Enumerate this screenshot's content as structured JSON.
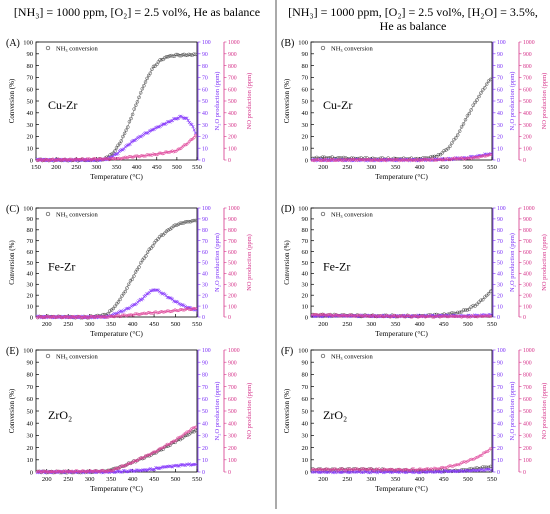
{
  "headers": {
    "left": "[NH₃] = 1000 ppm, [O₂] = 2.5 vol%, He as balance",
    "right_line1": "[NH₃] = 1000 ppm, [O₂] = 2.5 vol%, [H₂O] = 3.5%,",
    "right_line2": "He as balance"
  },
  "axis_text": {
    "xlabel": "Temperature (°C)",
    "ylabel_left": "Conversion (%)",
    "ylabel_n2o": "N₂O production (ppm)",
    "ylabel_no": "NO production (ppm)",
    "legend": "NH₃ conversion"
  },
  "colors": {
    "nh3": "#4a4a4a",
    "n2o": "#8a3ffc",
    "no": "#e0469b",
    "axis": "#000000",
    "n2o_axis": "#7b2ff7",
    "no_axis": "#d6338a"
  },
  "chart_data": [
    {
      "id": "A",
      "panel_label": "(A)",
      "catalyst": "Cu-Zr",
      "type": "scatter",
      "xlim": [
        150,
        550
      ],
      "xticks": [
        150,
        200,
        250,
        300,
        350,
        400,
        450,
        500,
        550
      ],
      "ylim": [
        0,
        100
      ],
      "n2o_lim": [
        0,
        100
      ],
      "no_lim": [
        0,
        1000
      ],
      "series": [
        {
          "name": "NH₃ conversion",
          "axis": "left",
          "x": [
            150,
            200,
            300,
            320,
            340,
            360,
            380,
            400,
            420,
            440,
            460,
            480,
            500,
            520,
            550
          ],
          "y": [
            0,
            0,
            0,
            1,
            5,
            15,
            30,
            48,
            65,
            78,
            85,
            88,
            89,
            89,
            89
          ]
        },
        {
          "axis": "n2o",
          "x": [
            150,
            300,
            330,
            350,
            380,
            400,
            430,
            460,
            490,
            510,
            525,
            540,
            550
          ],
          "y": [
            0,
            0,
            1,
            5,
            13,
            18,
            24,
            29,
            34,
            37,
            35,
            28,
            20
          ]
        },
        {
          "axis": "no",
          "x": [
            150,
            350,
            400,
            450,
            500,
            530,
            550
          ],
          "y": [
            0,
            10,
            30,
            50,
            80,
            150,
            220
          ]
        }
      ]
    },
    {
      "id": "B",
      "panel_label": "(B)",
      "catalyst": "Cu-Zr",
      "type": "scatter",
      "xlim": [
        175,
        550
      ],
      "xticks": [
        200,
        250,
        300,
        350,
        400,
        450,
        500,
        550
      ],
      "ylim": [
        0,
        100
      ],
      "n2o_lim": [
        0,
        100
      ],
      "no_lim": [
        0,
        1000
      ],
      "series": [
        {
          "name": "NH₃ conversion",
          "axis": "left",
          "x": [
            175,
            200,
            300,
            400,
            420,
            440,
            460,
            480,
            500,
            520,
            540,
            550
          ],
          "y": [
            2,
            2,
            1,
            1,
            2,
            4,
            10,
            22,
            38,
            52,
            65,
            70
          ]
        },
        {
          "axis": "n2o",
          "x": [
            175,
            400,
            450,
            500,
            530,
            550
          ],
          "y": [
            0,
            0,
            0.5,
            2,
            4,
            6
          ]
        },
        {
          "axis": "no",
          "x": [
            175,
            400,
            450,
            500,
            530,
            550
          ],
          "y": [
            0,
            0,
            5,
            15,
            30,
            45
          ]
        }
      ]
    },
    {
      "id": "C",
      "panel_label": "(C)",
      "catalyst": "Fe-Zr",
      "type": "scatter",
      "xlim": [
        175,
        550
      ],
      "xticks": [
        200,
        250,
        300,
        350,
        400,
        450,
        500,
        550
      ],
      "ylim": [
        0,
        100
      ],
      "n2o_lim": [
        0,
        100
      ],
      "no_lim": [
        0,
        1000
      ],
      "series": [
        {
          "name": "NH₃ conversion",
          "axis": "left",
          "x": [
            175,
            300,
            340,
            360,
            380,
            400,
            420,
            440,
            460,
            480,
            500,
            520,
            540,
            550
          ],
          "y": [
            0,
            0,
            2,
            10,
            22,
            36,
            50,
            62,
            72,
            79,
            84,
            87,
            88,
            89
          ]
        },
        {
          "axis": "n2o",
          "x": [
            175,
            340,
            360,
            380,
            400,
            420,
            440,
            450,
            460,
            480,
            500,
            520,
            550
          ],
          "y": [
            0,
            0,
            3,
            6,
            10,
            16,
            23,
            25,
            24,
            19,
            14,
            10,
            6
          ]
        },
        {
          "axis": "no",
          "x": [
            175,
            340,
            400,
            450,
            500,
            550
          ],
          "y": [
            0,
            0,
            20,
            40,
            60,
            80
          ]
        }
      ]
    },
    {
      "id": "D",
      "panel_label": "(D)",
      "catalyst": "Fe-Zr",
      "type": "scatter",
      "xlim": [
        175,
        550
      ],
      "xticks": [
        200,
        250,
        300,
        350,
        400,
        450,
        500,
        550
      ],
      "ylim": [
        0,
        100
      ],
      "n2o_lim": [
        0,
        100
      ],
      "no_lim": [
        0,
        1000
      ],
      "series": [
        {
          "name": "NH₃ conversion",
          "axis": "left",
          "x": [
            175,
            300,
            400,
            450,
            480,
            500,
            520,
            540,
            550
          ],
          "y": [
            2,
            1,
            1,
            2,
            4,
            7,
            12,
            20,
            26
          ]
        },
        {
          "axis": "n2o",
          "x": [
            175,
            300,
            400,
            500,
            550
          ],
          "y": [
            1,
            1,
            1,
            1,
            2
          ]
        },
        {
          "axis": "no",
          "x": [
            175,
            300,
            400,
            500,
            550
          ],
          "y": [
            20,
            10,
            5,
            5,
            10
          ]
        }
      ]
    },
    {
      "id": "E",
      "panel_label": "(E)",
      "catalyst": "ZrO₂",
      "type": "scatter",
      "xlim": [
        175,
        550
      ],
      "xticks": [
        200,
        250,
        300,
        350,
        400,
        450,
        500,
        550
      ],
      "ylim": [
        0,
        100
      ],
      "n2o_lim": [
        0,
        100
      ],
      "no_lim": [
        0,
        1000
      ],
      "series": [
        {
          "name": "NH₃ conversion",
          "axis": "left",
          "x": [
            175,
            300,
            340,
            360,
            380,
            400,
            420,
            440,
            460,
            480,
            500,
            520,
            540,
            550
          ],
          "y": [
            0,
            0,
            1,
            3,
            5,
            8,
            11,
            14,
            17,
            21,
            25,
            29,
            33,
            35
          ]
        },
        {
          "axis": "n2o",
          "x": [
            175,
            350,
            400,
            440,
            470,
            500,
            520,
            550
          ],
          "y": [
            0,
            0,
            1,
            2,
            4,
            5,
            6,
            6
          ]
        },
        {
          "axis": "no",
          "x": [
            175,
            350,
            400,
            450,
            500,
            550
          ],
          "y": [
            0,
            10,
            80,
            160,
            260,
            380
          ]
        }
      ]
    },
    {
      "id": "F",
      "panel_label": "(F)",
      "catalyst": "ZrO₂",
      "type": "scatter",
      "xlim": [
        175,
        550
      ],
      "xticks": [
        200,
        250,
        300,
        350,
        400,
        450,
        500,
        550
      ],
      "ylim": [
        0,
        100
      ],
      "n2o_lim": [
        0,
        100
      ],
      "no_lim": [
        0,
        1000
      ],
      "series": [
        {
          "name": "NH₃ conversion",
          "axis": "left",
          "x": [
            175,
            300,
            400,
            450,
            480,
            500,
            520,
            540,
            550
          ],
          "y": [
            2,
            2,
            1,
            1,
            1,
            2,
            3,
            4,
            4
          ]
        },
        {
          "axis": "n2o",
          "x": [
            175,
            400,
            500,
            550
          ],
          "y": [
            0,
            0,
            1,
            2
          ]
        },
        {
          "axis": "no",
          "x": [
            175,
            300,
            400,
            440,
            480,
            500,
            520,
            540,
            550
          ],
          "y": [
            20,
            20,
            20,
            30,
            60,
            90,
            120,
            170,
            200
          ]
        }
      ]
    }
  ]
}
